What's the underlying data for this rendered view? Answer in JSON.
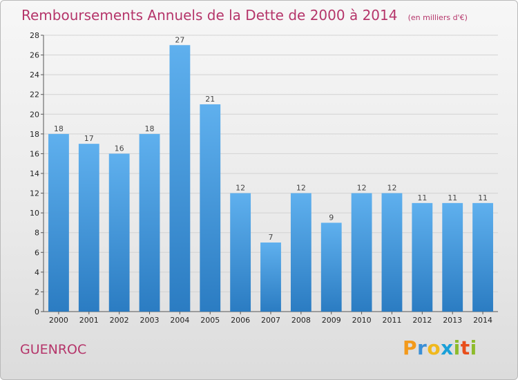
{
  "chart_data": {
    "type": "bar",
    "title": "Remboursements Annuels de la Dette de 2000 à 2014",
    "unit_label": "(en milliers d'€)",
    "categories": [
      "2000",
      "2001",
      "2002",
      "2003",
      "2004",
      "2005",
      "2006",
      "2007",
      "2008",
      "2009",
      "2010",
      "2011",
      "2012",
      "2013",
      "2014"
    ],
    "values": [
      18,
      17,
      16,
      18,
      27,
      21,
      12,
      7,
      12,
      9,
      12,
      12,
      11,
      11,
      11
    ],
    "ylim": [
      0,
      28
    ],
    "yticks": [
      0,
      2,
      4,
      6,
      8,
      10,
      12,
      14,
      16,
      18,
      20,
      22,
      24,
      26,
      28
    ],
    "grid": true,
    "bar_color": "#3d93d8"
  },
  "footer": {
    "commune": "GUENROC",
    "logo": {
      "p": "P",
      "r": "r",
      "o": "o",
      "x": "x",
      "i1": "i",
      "t": "t",
      "i2": "i"
    }
  }
}
